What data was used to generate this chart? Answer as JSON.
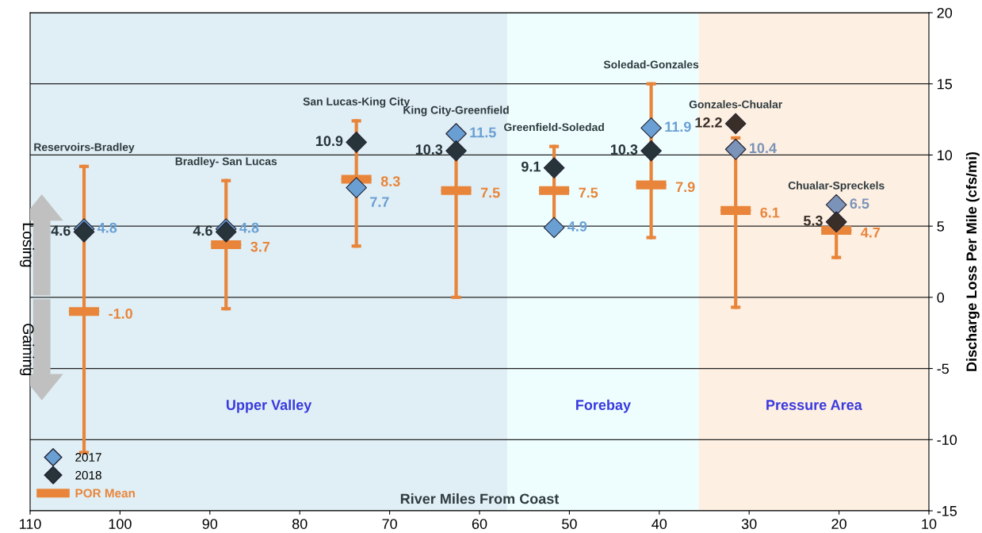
{
  "chart_data": {
    "type": "scatter",
    "x": [
      104.0,
      88.2,
      73.7,
      62.6,
      51.7,
      40.9,
      31.5,
      20.3
    ],
    "xlabel": "River Miles From Coast",
    "ylabel": "Discharge Loss Per Mile (cfs/mi)",
    "xlim": [
      110,
      10
    ],
    "xticks": [
      110,
      100,
      90,
      80,
      70,
      60,
      50,
      40,
      30,
      20,
      10
    ],
    "ylim": [
      -15,
      20
    ],
    "yticks": [
      -15,
      -10,
      -5,
      0,
      5,
      10,
      15,
      20
    ],
    "grid": "y",
    "legend": "bottom left",
    "data_labels": true,
    "series": [
      {
        "name": "POR Mean",
        "type": "box",
        "color": "#e8853a",
        "value_labels": [
          "-1.0",
          "3.7",
          "8.3",
          "7.5",
          "7.5",
          "7.9",
          "6.1",
          "4.7"
        ],
        "boxes": [
          {
            "low": -10.9,
            "q1": -1.0,
            "median": -1.0,
            "q3": -1.0,
            "high": 9.2
          },
          {
            "low": -0.8,
            "q1": 3.7,
            "median": 3.7,
            "q3": 3.7,
            "high": 8.2
          },
          {
            "low": 3.6,
            "q1": 8.3,
            "median": 8.3,
            "q3": 8.3,
            "high": 12.4
          },
          {
            "low": 0.0,
            "q1": 7.5,
            "median": 7.5,
            "q3": 7.5,
            "high": 11.8
          },
          {
            "low": 4.6,
            "q1": 7.5,
            "median": 7.5,
            "q3": 7.5,
            "high": 10.6
          },
          {
            "low": 4.2,
            "q1": 7.9,
            "median": 7.9,
            "q3": 7.9,
            "high": 15.0
          },
          {
            "low": -0.7,
            "q1": 6.1,
            "median": 6.1,
            "q3": 6.1,
            "high": 11.2
          },
          {
            "low": 2.8,
            "q1": 4.7,
            "median": 4.7,
            "q3": 4.7,
            "high": 5.4
          }
        ]
      },
      {
        "name": "2017",
        "marker": "diamond",
        "color": "#6a9fd4",
        "colors": [
          "#6a9fd4",
          "#6a9fd4",
          "#6a9fd4",
          "#6a9fd4",
          "#6a9fd4",
          "#6a9fd4",
          "#7b93b8",
          "#7b93b8"
        ],
        "values": [
          4.8,
          4.8,
          7.7,
          11.5,
          4.9,
          11.9,
          10.4,
          6.5
        ]
      },
      {
        "name": "2018",
        "marker": "diamond",
        "color": "#27343a",
        "colors": [
          "#27343a",
          "#27343a",
          "#27343a",
          "#27343a",
          "#27343a",
          "#27343a",
          "#3a2e28",
          "#3a2e28"
        ],
        "values": [
          4.6,
          4.6,
          10.9,
          10.3,
          9.1,
          10.3,
          12.2,
          5.3
        ]
      }
    ],
    "bands": [
      {
        "axis": "x",
        "from": 110,
        "to": 56.9,
        "label": "Upper Valley",
        "color": "#e0eff5"
      },
      {
        "axis": "x",
        "from": 56.9,
        "to": 35.6,
        "label": "Forebay",
        "color": "#eefeff"
      },
      {
        "axis": "x",
        "from": 35.6,
        "to": 10,
        "label": "Pressure Area",
        "color": "#fdefe2"
      }
    ],
    "annotations": [
      "Reservoirs-Bradley",
      "Bradley- San Lucas",
      "San Lucas-King City",
      "King City-Greenfield",
      "Greenfield-Soledad",
      "Soledad-Gonzales",
      "Gonzales-Chualar",
      "Chualar-Spreckels",
      "Losing",
      "Gaining"
    ]
  }
}
